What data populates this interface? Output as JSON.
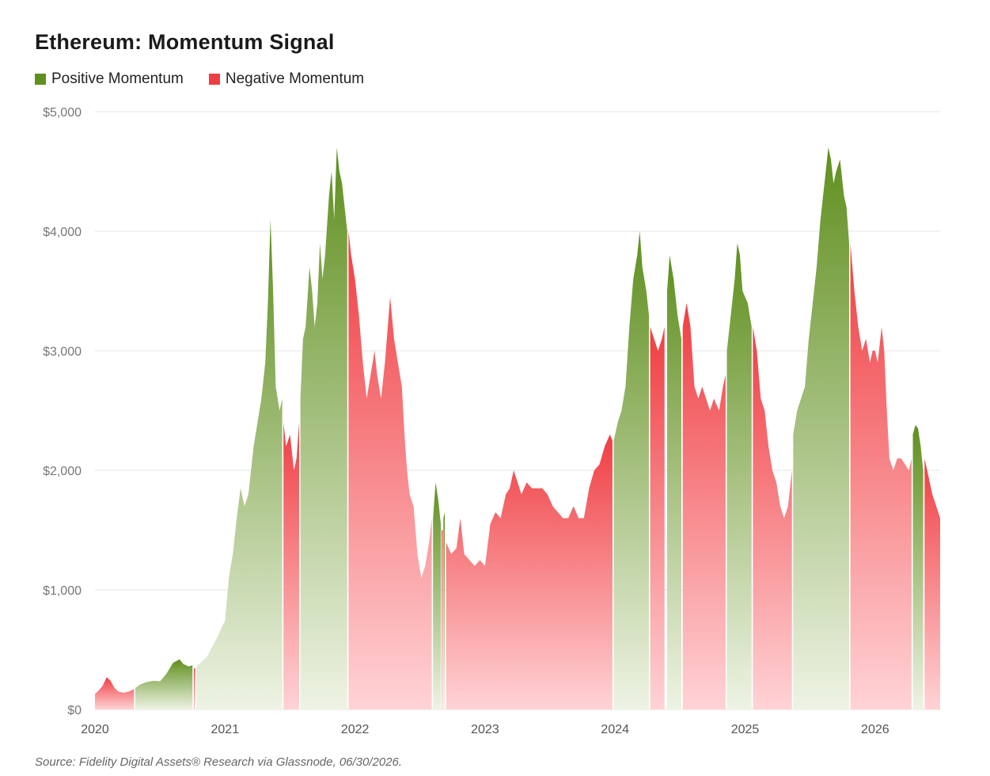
{
  "title": "Ethereum: Momentum Signal",
  "legend": {
    "positive": "Positive Momentum",
    "negative": "Negative Momentum"
  },
  "colors": {
    "positive": "#5f8f1e",
    "negative": "#ef3e42",
    "grid": "#e6e6e6"
  },
  "source": "Source: Fidelity Digital Assets® Research via Glassnode, 06/30/2026.",
  "chart_data": {
    "type": "area",
    "xlim": [
      2020.0,
      2026.5
    ],
    "ylim": [
      0,
      5000
    ],
    "grid": true,
    "legend_position": "top-left",
    "y_ticks": [
      {
        "value": 0,
        "label": "$0"
      },
      {
        "value": 1000,
        "label": "$1,000"
      },
      {
        "value": 2000,
        "label": "$2,000"
      },
      {
        "value": 3000,
        "label": "$3,000"
      },
      {
        "value": 4000,
        "label": "$4,000"
      },
      {
        "value": 5000,
        "label": "$5,000"
      }
    ],
    "x_ticks": [
      {
        "value": 2020,
        "label": "2020"
      },
      {
        "value": 2021,
        "label": "2021"
      },
      {
        "value": 2022,
        "label": "2022"
      },
      {
        "value": 2023,
        "label": "2023"
      },
      {
        "value": 2024,
        "label": "2024"
      },
      {
        "value": 2025,
        "label": "2025"
      },
      {
        "value": 2026,
        "label": "2026"
      }
    ],
    "series": [
      {
        "name": "Positive Momentum",
        "segments": [
          [
            [
              2020.31,
              180
            ],
            [
              2020.35,
              210
            ],
            [
              2020.4,
              230
            ],
            [
              2020.45,
              240
            ],
            [
              2020.5,
              235
            ],
            [
              2020.55,
              300
            ],
            [
              2020.6,
              390
            ],
            [
              2020.65,
              420
            ],
            [
              2020.68,
              380
            ],
            [
              2020.72,
              360
            ],
            [
              2020.75,
              370
            ]
          ],
          [
            [
              2020.78,
              360
            ],
            [
              2020.82,
              400
            ],
            [
              2020.86,
              440
            ],
            [
              2020.9,
              520
            ],
            [
              2020.94,
              600
            ],
            [
              2020.98,
              700
            ],
            [
              2021.0,
              740
            ],
            [
              2021.03,
              1100
            ],
            [
              2021.06,
              1300
            ],
            [
              2021.09,
              1600
            ],
            [
              2021.12,
              1850
            ],
            [
              2021.15,
              1700
            ],
            [
              2021.18,
              1800
            ],
            [
              2021.22,
              2200
            ],
            [
              2021.25,
              2400
            ],
            [
              2021.28,
              2600
            ],
            [
              2021.31,
              2900
            ],
            [
              2021.33,
              3400
            ],
            [
              2021.35,
              4100
            ],
            [
              2021.37,
              3500
            ],
            [
              2021.39,
              2700
            ],
            [
              2021.42,
              2500
            ],
            [
              2021.44,
              2600
            ]
          ],
          [
            [
              2021.58,
              2600
            ],
            [
              2021.6,
              3100
            ],
            [
              2021.62,
              3200
            ],
            [
              2021.65,
              3700
            ],
            [
              2021.67,
              3500
            ],
            [
              2021.69,
              3200
            ],
            [
              2021.71,
              3400
            ],
            [
              2021.73,
              3900
            ],
            [
              2021.75,
              3600
            ],
            [
              2021.77,
              3800
            ],
            [
              2021.8,
              4300
            ],
            [
              2021.82,
              4500
            ],
            [
              2021.84,
              4100
            ],
            [
              2021.86,
              4700
            ],
            [
              2021.88,
              4500
            ],
            [
              2021.9,
              4400
            ],
            [
              2021.92,
              4200
            ],
            [
              2021.94,
              4000
            ]
          ],
          [
            [
              2022.6,
              1600
            ],
            [
              2022.62,
              1900
            ],
            [
              2022.64,
              1750
            ],
            [
              2022.66,
              1550
            ]
          ],
          [
            [
              2022.68,
              1600
            ],
            [
              2022.69,
              1650
            ]
          ],
          [
            [
              2023.99,
              2250
            ],
            [
              2024.02,
              2400
            ],
            [
              2024.05,
              2500
            ],
            [
              2024.08,
              2700
            ],
            [
              2024.11,
              3200
            ],
            [
              2024.14,
              3600
            ],
            [
              2024.17,
              3800
            ],
            [
              2024.19,
              4000
            ],
            [
              2024.21,
              3700
            ],
            [
              2024.24,
              3500
            ],
            [
              2024.26,
              3300
            ]
          ],
          [
            [
              2024.4,
              3500
            ],
            [
              2024.42,
              3800
            ],
            [
              2024.45,
              3600
            ],
            [
              2024.48,
              3300
            ],
            [
              2024.51,
              3100
            ]
          ],
          [
            [
              2024.86,
              3000
            ],
            [
              2024.89,
              3300
            ],
            [
              2024.92,
              3600
            ],
            [
              2024.94,
              3900
            ],
            [
              2024.96,
              3800
            ],
            [
              2024.98,
              3500
            ],
            [
              2025.02,
              3400
            ],
            [
              2025.05,
              3200
            ]
          ],
          [
            [
              2025.37,
              2300
            ],
            [
              2025.4,
              2500
            ],
            [
              2025.43,
              2600
            ],
            [
              2025.46,
              2700
            ],
            [
              2025.49,
              3100
            ],
            [
              2025.52,
              3400
            ],
            [
              2025.55,
              3700
            ],
            [
              2025.58,
              4100
            ],
            [
              2025.61,
              4400
            ],
            [
              2025.64,
              4700
            ],
            [
              2025.66,
              4600
            ],
            [
              2025.68,
              4400
            ],
            [
              2025.7,
              4500
            ],
            [
              2025.73,
              4600
            ],
            [
              2025.76,
              4300
            ],
            [
              2025.78,
              4200
            ],
            [
              2025.8,
              3900
            ]
          ],
          [
            [
              2026.29,
              2300
            ],
            [
              2026.31,
              2380
            ],
            [
              2026.33,
              2350
            ],
            [
              2026.35,
              2200
            ],
            [
              2026.37,
              2000
            ]
          ]
        ]
      },
      {
        "name": "Negative Momentum",
        "segments": [
          [
            [
              2020.0,
              130
            ],
            [
              2020.03,
              160
            ],
            [
              2020.06,
              200
            ],
            [
              2020.09,
              270
            ],
            [
              2020.12,
              240
            ],
            [
              2020.15,
              180
            ],
            [
              2020.18,
              150
            ],
            [
              2020.22,
              140
            ],
            [
              2020.26,
              150
            ],
            [
              2020.3,
              170
            ]
          ],
          [
            [
              2020.76,
              340
            ],
            [
              2020.77,
              350
            ]
          ],
          [
            [
              2021.45,
              2400
            ],
            [
              2021.47,
              2200
            ],
            [
              2021.5,
              2300
            ],
            [
              2021.53,
              2000
            ],
            [
              2021.55,
              2100
            ],
            [
              2021.57,
              2400
            ]
          ],
          [
            [
              2021.95,
              4000
            ],
            [
              2021.97,
              3800
            ],
            [
              2022.0,
              3600
            ],
            [
              2022.03,
              3300
            ],
            [
              2022.06,
              2900
            ],
            [
              2022.09,
              2600
            ],
            [
              2022.12,
              2800
            ],
            [
              2022.15,
              3000
            ],
            [
              2022.17,
              2800
            ],
            [
              2022.2,
              2600
            ],
            [
              2022.23,
              2900
            ],
            [
              2022.27,
              3450
            ],
            [
              2022.3,
              3100
            ],
            [
              2022.33,
              2900
            ],
            [
              2022.36,
              2700
            ],
            [
              2022.38,
              2300
            ],
            [
              2022.4,
              2000
            ],
            [
              2022.42,
              1800
            ],
            [
              2022.45,
              1700
            ],
            [
              2022.48,
              1300
            ],
            [
              2022.51,
              1100
            ],
            [
              2022.54,
              1200
            ],
            [
              2022.57,
              1400
            ],
            [
              2022.59,
              1600
            ]
          ],
          [
            [
              2022.67,
              1500
            ]
          ],
          [
            [
              2022.7,
              1400
            ],
            [
              2022.74,
              1300
            ],
            [
              2022.78,
              1350
            ],
            [
              2022.81,
              1600
            ],
            [
              2022.84,
              1300
            ],
            [
              2022.88,
              1250
            ],
            [
              2022.92,
              1200
            ],
            [
              2022.96,
              1250
            ],
            [
              2023.0,
              1200
            ],
            [
              2023.04,
              1550
            ],
            [
              2023.08,
              1650
            ],
            [
              2023.12,
              1600
            ],
            [
              2023.16,
              1800
            ],
            [
              2023.19,
              1850
            ],
            [
              2023.22,
              2000
            ],
            [
              2023.25,
              1900
            ],
            [
              2023.28,
              1800
            ],
            [
              2023.32,
              1900
            ],
            [
              2023.36,
              1850
            ],
            [
              2023.4,
              1850
            ],
            [
              2023.44,
              1850
            ],
            [
              2023.48,
              1800
            ],
            [
              2023.52,
              1700
            ],
            [
              2023.56,
              1650
            ],
            [
              2023.6,
              1600
            ],
            [
              2023.64,
              1600
            ],
            [
              2023.68,
              1700
            ],
            [
              2023.72,
              1600
            ],
            [
              2023.76,
              1600
            ],
            [
              2023.8,
              1850
            ],
            [
              2023.84,
              2000
            ],
            [
              2023.88,
              2050
            ],
            [
              2023.92,
              2200
            ],
            [
              2023.96,
              2300
            ],
            [
              2023.98,
              2250
            ]
          ],
          [
            [
              2024.27,
              3200
            ],
            [
              2024.3,
              3100
            ],
            [
              2024.33,
              3000
            ],
            [
              2024.36,
              3100
            ],
            [
              2024.38,
              3200
            ]
          ],
          [
            [
              2024.52,
              3200
            ],
            [
              2024.55,
              3400
            ],
            [
              2024.58,
              3200
            ],
            [
              2024.61,
              2700
            ],
            [
              2024.64,
              2600
            ],
            [
              2024.67,
              2700
            ],
            [
              2024.7,
              2600
            ],
            [
              2024.73,
              2500
            ],
            [
              2024.76,
              2600
            ],
            [
              2024.8,
              2500
            ],
            [
              2024.83,
              2700
            ],
            [
              2024.85,
              2800
            ]
          ],
          [
            [
              2025.06,
              3200
            ],
            [
              2025.09,
              3000
            ],
            [
              2025.12,
              2600
            ],
            [
              2025.15,
              2500
            ],
            [
              2025.18,
              2200
            ],
            [
              2025.21,
              2000
            ],
            [
              2025.24,
              1900
            ],
            [
              2025.27,
              1700
            ],
            [
              2025.3,
              1600
            ],
            [
              2025.33,
              1700
            ],
            [
              2025.36,
              2000
            ]
          ],
          [
            [
              2025.81,
              3900
            ],
            [
              2025.84,
              3500
            ],
            [
              2025.87,
              3200
            ],
            [
              2025.9,
              3000
            ],
            [
              2025.93,
              3100
            ],
            [
              2025.96,
              2900
            ],
            [
              2025.98,
              3000
            ],
            [
              2026.0,
              3000
            ],
            [
              2026.02,
              2900
            ],
            [
              2026.05,
              3200
            ],
            [
              2026.07,
              3000
            ],
            [
              2026.09,
              2500
            ],
            [
              2026.11,
              2100
            ],
            [
              2026.14,
              2000
            ],
            [
              2026.17,
              2100
            ],
            [
              2026.2,
              2100
            ],
            [
              2026.23,
              2050
            ],
            [
              2026.26,
              2000
            ],
            [
              2026.28,
              2100
            ]
          ],
          [
            [
              2026.38,
              2100
            ],
            [
              2026.41,
              1950
            ],
            [
              2026.44,
              1800
            ],
            [
              2026.47,
              1700
            ],
            [
              2026.5,
              1600
            ]
          ]
        ]
      }
    ]
  }
}
